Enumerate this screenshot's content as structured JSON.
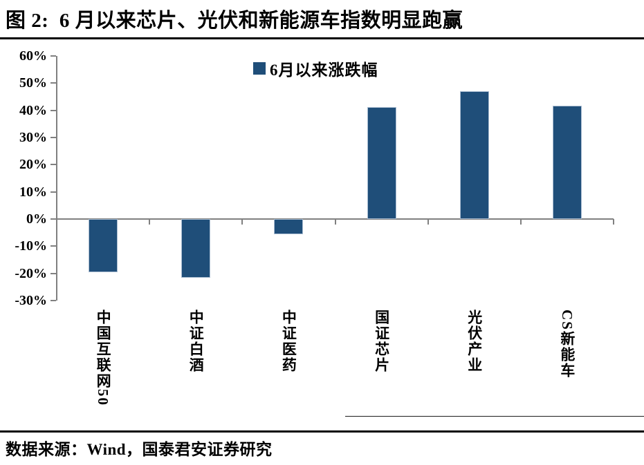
{
  "title": "图 2:  6 月以来芯片、光伏和新能源车指数明显跑赢",
  "legend": {
    "label": "6月以来涨跌幅",
    "swatch_color": "#1F4E79"
  },
  "chart_data": {
    "type": "bar",
    "title": "6月以来涨跌幅",
    "categories": [
      "中国互联网50",
      "中证白酒",
      "中证医药",
      "国证芯片",
      "光伏产业",
      "CS新能车"
    ],
    "values": [
      -19.6,
      -21.6,
      -5.6,
      41.3,
      47.1,
      41.8
    ],
    "unit": "%",
    "ylim": [
      -30,
      60
    ],
    "ytick_step": 10,
    "ytick_labels": [
      "60%",
      "50%",
      "40%",
      "30%",
      "20%",
      "10%",
      "0%",
      "-10%",
      "-20%",
      "-30%"
    ],
    "xlabel": "",
    "ylabel": "",
    "grid": false,
    "legend_position": "top-center",
    "bar_color": "#1F4E79",
    "bar_border_color": "#A9BCD1",
    "axis_color": "#808080"
  },
  "footer": {
    "source": "数据来源：Wind，国泰君安证券研究"
  }
}
